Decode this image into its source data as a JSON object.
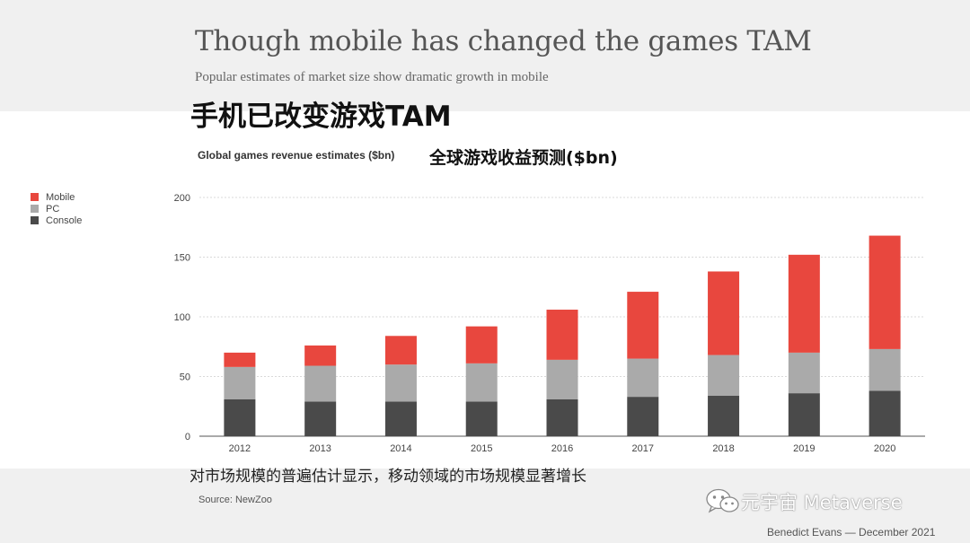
{
  "slide": {
    "title": "Though mobile has changed the games TAM",
    "subtitle": "Popular estimates of market size show dramatic growth in mobile",
    "title_cn": "手机已改变游戏TAM",
    "note_cn": "对市场规模的普遍估计显示，移动领域的市场规模显著增长",
    "source": "Source: NewZoo",
    "watermark": "元宇宙 Metaverse",
    "watermark_icon": "wechat-icon",
    "author": "Benedict Evans — December 2021"
  },
  "colors": {
    "mobile": "#e8473e",
    "pc": "#aaaaaa",
    "console": "#4a4a4a",
    "grid": "#d9d9d9"
  },
  "chart_data": {
    "type": "bar",
    "stacked": true,
    "title": "Global games revenue estimates ($bn)",
    "title_cn": "全球游戏收益预测($bn)",
    "categories": [
      "2012",
      "2013",
      "2014",
      "2015",
      "2016",
      "2017",
      "2018",
      "2019",
      "2020"
    ],
    "series": [
      {
        "name": "Console",
        "values": [
          31,
          29,
          29,
          29,
          31,
          33,
          34,
          36,
          38
        ]
      },
      {
        "name": "PC",
        "values": [
          27,
          30,
          31,
          32,
          33,
          32,
          34,
          34,
          35
        ]
      },
      {
        "name": "Mobile",
        "values": [
          12,
          17,
          24,
          31,
          42,
          56,
          70,
          82,
          95
        ]
      }
    ],
    "legend_order": [
      "Mobile",
      "PC",
      "Console"
    ],
    "legend_position": "left",
    "ylim": [
      0,
      200
    ],
    "yticks": [
      0,
      50,
      100,
      150,
      200
    ],
    "grid": true
  }
}
